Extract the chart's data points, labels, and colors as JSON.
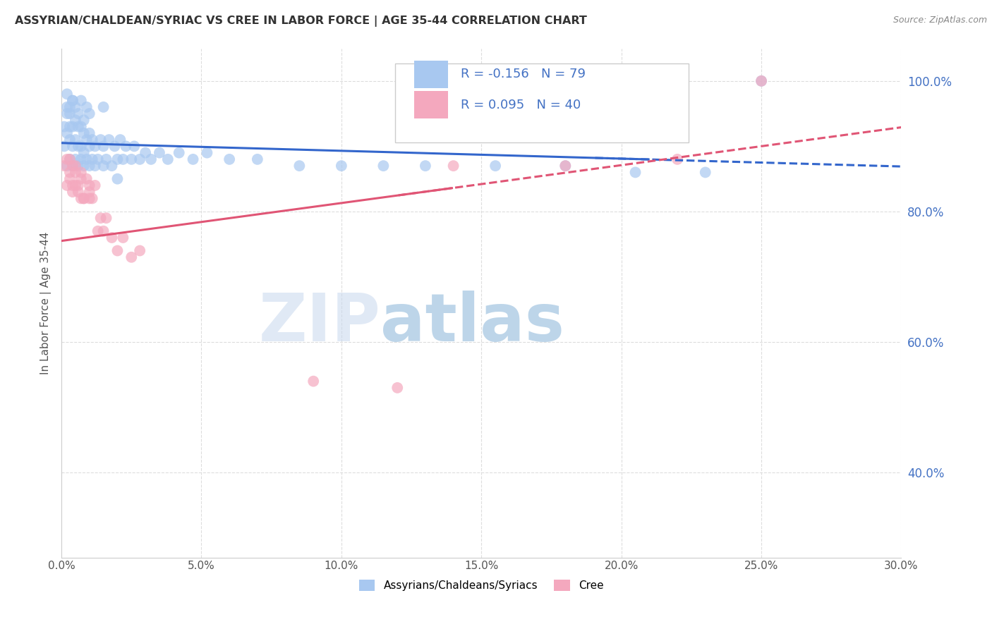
{
  "title": "ASSYRIAN/CHALDEAN/SYRIAC VS CREE IN LABOR FORCE | AGE 35-44 CORRELATION CHART",
  "source": "Source: ZipAtlas.com",
  "ylabel": "In Labor Force | Age 35-44",
  "xlim": [
    0.0,
    0.3
  ],
  "ylim": [
    0.27,
    1.05
  ],
  "legend_r_blue": "-0.156",
  "legend_n_blue": "79",
  "legend_r_pink": "0.095",
  "legend_n_pink": "40",
  "blue_color": "#A8C8F0",
  "pink_color": "#F4A8BE",
  "trendline_blue_color": "#3366CC",
  "trendline_pink_color": "#E05575",
  "legend_text_color": "#4472C4",
  "watermark_zip_color": "#C8DCF0",
  "watermark_atlas_color": "#88B8E0",
  "gridline_color": "#DDDDDD",
  "background_color": "#FFFFFF",
  "blue_scatter_x": [
    0.001,
    0.001,
    0.002,
    0.002,
    0.002,
    0.003,
    0.003,
    0.003,
    0.003,
    0.004,
    0.004,
    0.004,
    0.004,
    0.005,
    0.005,
    0.005,
    0.006,
    0.006,
    0.006,
    0.007,
    0.007,
    0.007,
    0.008,
    0.008,
    0.008,
    0.009,
    0.009,
    0.01,
    0.01,
    0.01,
    0.011,
    0.011,
    0.012,
    0.012,
    0.013,
    0.014,
    0.015,
    0.015,
    0.016,
    0.017,
    0.018,
    0.019,
    0.02,
    0.021,
    0.022,
    0.023,
    0.025,
    0.026,
    0.028,
    0.03,
    0.032,
    0.035,
    0.038,
    0.042,
    0.047,
    0.052,
    0.06,
    0.07,
    0.085,
    0.1,
    0.115,
    0.13,
    0.155,
    0.18,
    0.205,
    0.23,
    0.002,
    0.002,
    0.003,
    0.004,
    0.005,
    0.006,
    0.007,
    0.008,
    0.009,
    0.01,
    0.015,
    0.02,
    0.25
  ],
  "blue_scatter_y": [
    0.9,
    0.93,
    0.87,
    0.92,
    0.95,
    0.88,
    0.91,
    0.93,
    0.96,
    0.87,
    0.9,
    0.93,
    0.97,
    0.88,
    0.91,
    0.94,
    0.87,
    0.9,
    0.93,
    0.88,
    0.9,
    0.93,
    0.87,
    0.89,
    0.92,
    0.88,
    0.91,
    0.87,
    0.9,
    0.92,
    0.88,
    0.91,
    0.87,
    0.9,
    0.88,
    0.91,
    0.87,
    0.9,
    0.88,
    0.91,
    0.87,
    0.9,
    0.88,
    0.91,
    0.88,
    0.9,
    0.88,
    0.9,
    0.88,
    0.89,
    0.88,
    0.89,
    0.88,
    0.89,
    0.88,
    0.89,
    0.88,
    0.88,
    0.87,
    0.87,
    0.87,
    0.87,
    0.87,
    0.87,
    0.86,
    0.86,
    0.96,
    0.98,
    0.95,
    0.97,
    0.96,
    0.95,
    0.97,
    0.94,
    0.96,
    0.95,
    0.96,
    0.85,
    1.0
  ],
  "pink_scatter_x": [
    0.001,
    0.002,
    0.002,
    0.003,
    0.003,
    0.004,
    0.004,
    0.005,
    0.005,
    0.006,
    0.007,
    0.007,
    0.008,
    0.009,
    0.01,
    0.01,
    0.011,
    0.012,
    0.013,
    0.014,
    0.015,
    0.016,
    0.018,
    0.02,
    0.022,
    0.025,
    0.028,
    0.003,
    0.004,
    0.005,
    0.006,
    0.007,
    0.008,
    0.01,
    0.14,
    0.18,
    0.22,
    0.25,
    0.09,
    0.12
  ],
  "pink_scatter_y": [
    0.87,
    0.84,
    0.88,
    0.85,
    0.88,
    0.84,
    0.87,
    0.84,
    0.87,
    0.84,
    0.82,
    0.85,
    0.82,
    0.85,
    0.82,
    0.84,
    0.82,
    0.84,
    0.77,
    0.79,
    0.77,
    0.79,
    0.76,
    0.74,
    0.76,
    0.73,
    0.74,
    0.86,
    0.83,
    0.86,
    0.83,
    0.86,
    0.82,
    0.83,
    0.87,
    0.87,
    0.88,
    1.0,
    0.54,
    0.53
  ],
  "trendline_blue_solid_end": 0.2,
  "trendline_pink_solid_end": 0.13,
  "blue_trend_intercept": 0.905,
  "blue_trend_slope": -0.12,
  "pink_trend_intercept": 0.755,
  "pink_trend_slope": 0.58
}
